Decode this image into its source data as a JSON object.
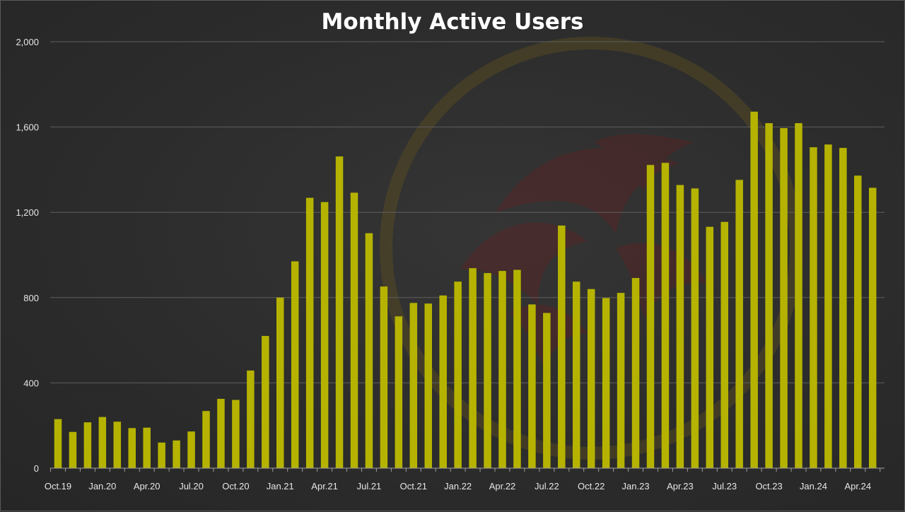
{
  "chart_data": {
    "type": "bar",
    "title": "Monthly Active Users",
    "xlabel": "",
    "ylabel": "",
    "ylim": [
      0,
      2000
    ],
    "y_ticks": [
      "0",
      "400",
      "800",
      "1,200",
      "1,600",
      "2,000"
    ],
    "y_tick_values": [
      0,
      400,
      800,
      1200,
      1600,
      2000
    ],
    "grid": true,
    "bar_color": "#b5b300",
    "categories": [
      "Oct.19",
      "Nov.19",
      "Dec.19",
      "Jan.20",
      "Feb.20",
      "Mar.20",
      "Apr.20",
      "May.20",
      "Jun.20",
      "Jul.20",
      "Aug.20",
      "Sep.20",
      "Oct.20",
      "Nov.20",
      "Dec.20",
      "Jan.21",
      "Feb.21",
      "Mar.21",
      "Apr.21",
      "May.21",
      "Jun.21",
      "Jul.21",
      "Aug.21",
      "Sep.21",
      "Oct.21",
      "Nov.21",
      "Dec.21",
      "Jan.22",
      "Feb.22",
      "Mar.22",
      "Apr.22",
      "May.22",
      "Jun.22",
      "Jul.22",
      "Aug.22",
      "Sep.22",
      "Oct.22",
      "Nov.22",
      "Dec.22",
      "Jan.23",
      "Feb.23",
      "Mar.23",
      "Apr.23",
      "May.23",
      "Jun.23",
      "Jul.23",
      "Aug.23",
      "Sep.23",
      "Oct.23",
      "Nov.23",
      "Dec.23",
      "Jan.24",
      "Feb.24",
      "Mar.24",
      "Apr.24",
      "May.24"
    ],
    "x_tick_labels": [
      "Oct.19",
      "Jan.20",
      "Apr.20",
      "Jul.20",
      "Oct.20",
      "Jan.21",
      "Apr.21",
      "Jul.21",
      "Oct.21",
      "Jan.22",
      "Apr.22",
      "Jul.22",
      "Oct.22",
      "Jan.23",
      "Apr.23",
      "Jul.23",
      "Oct.23",
      "Jan.24",
      "Apr.24"
    ],
    "values": [
      230,
      170,
      215,
      240,
      218,
      188,
      190,
      120,
      130,
      172,
      268,
      325,
      320,
      458,
      620,
      800,
      970,
      1268,
      1248,
      1462,
      1292,
      1102,
      852,
      712,
      775,
      772,
      810,
      875,
      938,
      915,
      925,
      930,
      768,
      728,
      1138,
      875,
      840,
      798,
      822,
      892,
      1422,
      1432,
      1328,
      1312,
      1132,
      1155,
      1352,
      1672,
      1618,
      1595,
      1618,
      1505,
      1518,
      1502,
      1372,
      1315
    ]
  }
}
